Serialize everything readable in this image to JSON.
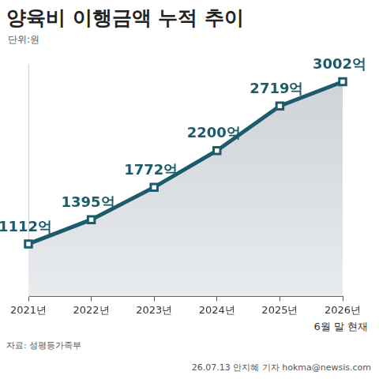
{
  "chart_data": {
    "type": "line",
    "title": "양육비 이행금액 누적 추이",
    "subtitle": "단위:원",
    "categories": [
      "2021년",
      "2022년",
      "2023년",
      "2024년",
      "2025년",
      "2026년"
    ],
    "values": [
      1112,
      1395,
      1772,
      2200,
      2719,
      3002
    ],
    "value_labels": [
      "1112억",
      "1395억",
      "1772억",
      "2200억",
      "2719억",
      "3002억"
    ],
    "data_labels": true,
    "color": "#1d5b6c",
    "marker": "square",
    "ylim": [
      500,
      3200
    ],
    "tick_labels": "x",
    "grid": false,
    "annotations": [
      "6월 말 현재"
    ],
    "source": "자료: 성평등가족부",
    "credit": "26.07.13 안지혜 기자 hokma@newsis.com"
  }
}
